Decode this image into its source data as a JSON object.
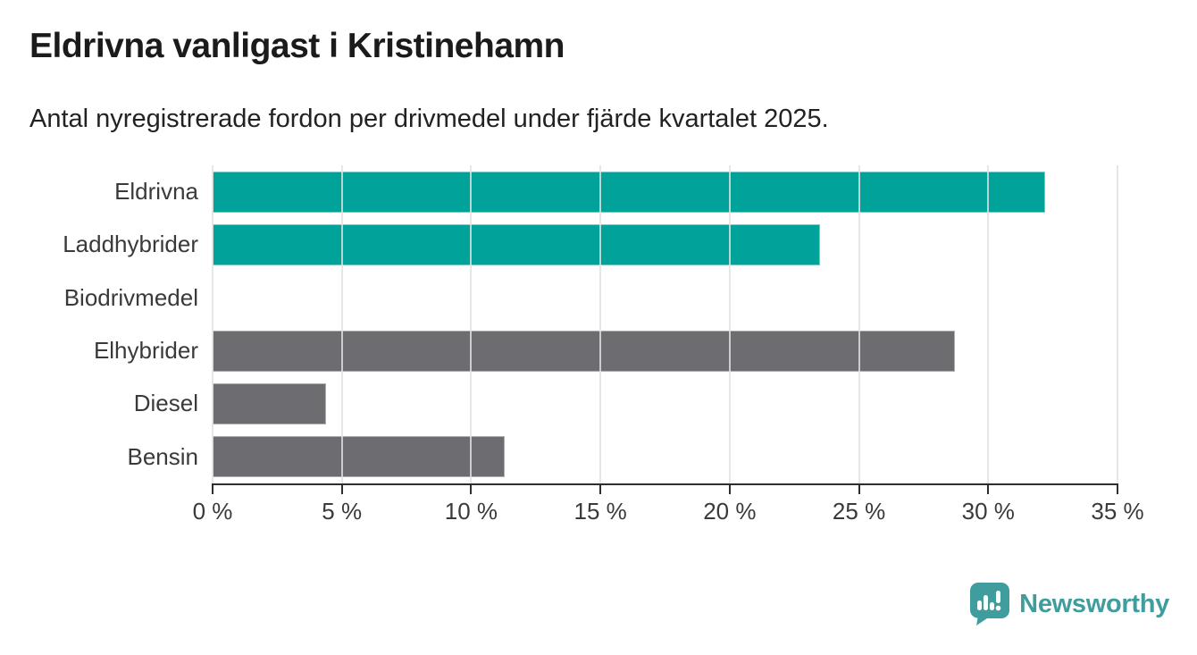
{
  "header": {
    "title": "Eldrivna vanligast i Kristinehamn",
    "subtitle": "Antal nyregistrerade fordon per drivmedel under fjärde kvartalet 2025."
  },
  "colors": {
    "teal": "#00a299",
    "gray": "#6c6c71",
    "grid": "#e2e2e2",
    "axis": "#2e2e2e",
    "text": "#3a3a3a",
    "logo": "#3f9d9d"
  },
  "chart_data": {
    "type": "bar",
    "orientation": "horizontal",
    "title": "Eldrivna vanligast i Kristinehamn",
    "subtitle": "Antal nyregistrerade fordon per drivmedel under fjärde kvartalet 2025.",
    "categories": [
      "Eldrivna",
      "Laddhybrider",
      "Biodrivmedel",
      "Elhybrider",
      "Diesel",
      "Bensin"
    ],
    "values": [
      32.2,
      23.5,
      0,
      28.7,
      4.4,
      11.3
    ],
    "unit": "%",
    "bar_colors": [
      "#00a299",
      "#00a299",
      "#6c6c71",
      "#6c6c71",
      "#6c6c71",
      "#6c6c71"
    ],
    "xlabel": "",
    "ylabel": "",
    "xlim": [
      0,
      35
    ],
    "x_ticks": [
      0,
      5,
      10,
      15,
      20,
      25,
      30,
      35
    ],
    "x_tick_labels": [
      "0 %",
      "5 %",
      "10 %",
      "15 %",
      "20 %",
      "25 %",
      "30 %",
      "35 %"
    ],
    "grid": "vertical-gridlines-on",
    "legend": "none"
  },
  "footer": {
    "logo_text": "Newsworthy",
    "logo_icon": "newsworthy-speech-bubble-chart-icon"
  }
}
